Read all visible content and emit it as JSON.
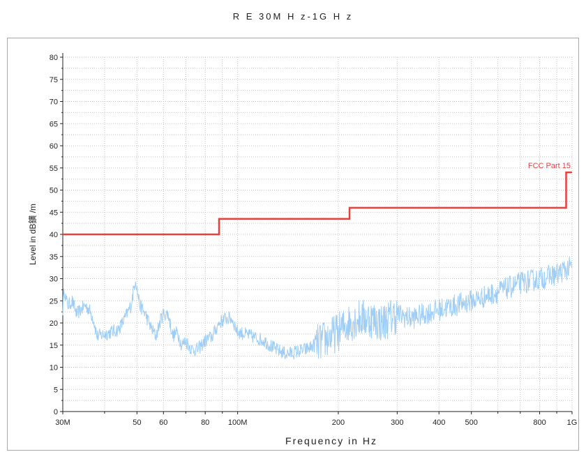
{
  "chart_data": {
    "type": "line",
    "title": "R E 30M H z-1G H z",
    "xlabel": "Frequency in Hz",
    "ylabel": "Level in dB鐄 /m",
    "x_scale": "log",
    "xlim": [
      30000000,
      1000000000
    ],
    "ylim": [
      0,
      80
    ],
    "grid": true,
    "y_ticks": [
      0,
      5,
      10,
      15,
      20,
      25,
      30,
      35,
      40,
      45,
      50,
      55,
      60,
      65,
      70,
      75,
      80
    ],
    "x_ticks": [
      {
        "value": 30000000,
        "label": "30M"
      },
      {
        "value": 50000000,
        "label": "50"
      },
      {
        "value": 60000000,
        "label": "60"
      },
      {
        "value": 80000000,
        "label": "80"
      },
      {
        "value": 100000000,
        "label": "100M"
      },
      {
        "value": 200000000,
        "label": "200"
      },
      {
        "value": 300000000,
        "label": "300"
      },
      {
        "value": 400000000,
        "label": "400"
      },
      {
        "value": 500000000,
        "label": "500"
      },
      {
        "value": 800000000,
        "label": "800"
      },
      {
        "value": 1000000000,
        "label": "1G"
      }
    ],
    "x_minor_gridlines": [
      40000000,
      70000000,
      90000000,
      600000000,
      700000000,
      900000000
    ],
    "series": [
      {
        "name": "FCC Part 15",
        "color": "#e8413c",
        "step": true,
        "x": [
          30000000,
          88000000,
          88000000,
          216000000,
          216000000,
          960000000,
          960000000,
          1000000000
        ],
        "y": [
          40,
          40,
          43.5,
          43.5,
          46,
          46,
          54,
          54
        ]
      },
      {
        "name": "",
        "color": "#9ecdf5",
        "x": [
          30000000,
          30300000,
          30700000,
          31200000,
          32000000,
          33000000,
          34000000,
          35000000,
          36000000,
          37000000,
          38000000,
          40000000,
          42000000,
          44000000,
          46000000,
          48000000,
          49500000,
          50200000,
          51000000,
          53000000,
          55000000,
          57000000,
          59000000,
          60000000,
          62000000,
          64000000,
          66000000,
          68000000,
          70000000,
          73000000,
          76000000,
          80000000,
          84000000,
          88000000,
          92000000,
          96000000,
          100000000,
          110000000,
          120000000,
          130000000,
          140000000,
          150000000,
          160000000,
          170000000,
          180000000,
          190000000,
          200000000,
          215000000,
          230000000,
          250000000,
          270000000,
          300000000,
          330000000,
          360000000,
          400000000,
          450000000,
          500000000,
          550000000,
          600000000,
          650000000,
          700000000,
          750000000,
          800000000,
          850000000,
          900000000,
          950000000,
          1000000000
        ],
        "y": [
          23,
          28,
          25,
          24,
          25,
          22,
          23,
          24,
          23,
          21,
          17,
          17.5,
          18,
          18.5,
          21,
          24,
          30,
          27,
          24,
          22,
          19,
          17,
          21,
          22,
          22,
          17,
          18,
          15,
          16,
          14,
          14,
          16,
          17,
          20,
          21,
          21,
          18,
          17,
          16,
          14,
          13,
          13.5,
          14,
          15,
          16,
          17,
          18,
          20,
          21,
          21,
          20,
          22,
          21,
          22,
          23,
          24,
          25,
          26,
          27,
          28,
          29,
          29.5,
          30,
          30.5,
          31,
          32,
          32.5
        ]
      }
    ],
    "annotations": [
      {
        "text": "FCC Part 15",
        "color": "#e8413c"
      }
    ]
  }
}
